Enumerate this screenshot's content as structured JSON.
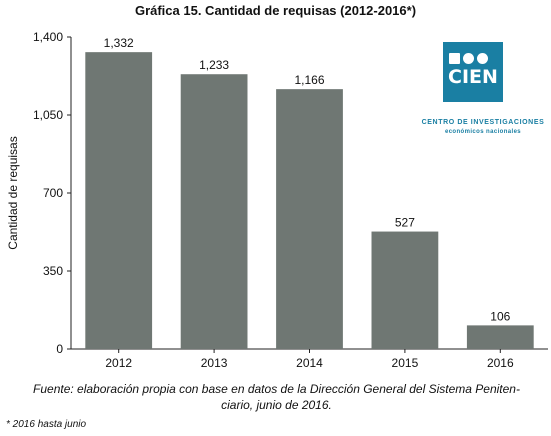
{
  "chart_data": {
    "type": "bar",
    "title": "Gráfica 15.  Cantidad de requisas (2012-2016*)",
    "ylabel": "Cantidad de requisas",
    "xlabel": "",
    "categories": [
      "2012",
      "2013",
      "2014",
      "2015",
      "2016"
    ],
    "values": [
      1332,
      1233,
      1166,
      527,
      106
    ],
    "value_labels": [
      "1,332",
      "1,233",
      "1,166",
      "527",
      "106"
    ],
    "ylim": [
      0,
      1400
    ],
    "yticks": [
      0,
      350,
      700,
      1050,
      1400
    ],
    "ytick_labels": [
      "0",
      "350",
      "700",
      "1,050",
      "1,400"
    ],
    "grid": false,
    "legend": "none",
    "bar_color": "#6f7773"
  },
  "logo": {
    "word": "CIEN",
    "line1": "CENTRO DE INVESTIGACIONES",
    "line2": "económicos nacionales",
    "color": "#1a7fa3"
  },
  "source_line1": "Fuente: elaboración propia con base en datos de la  Dirección General del Sistema Peniten-",
  "source_line2": "ciario, junio de 2016.",
  "note": "* 2016 hasta junio"
}
